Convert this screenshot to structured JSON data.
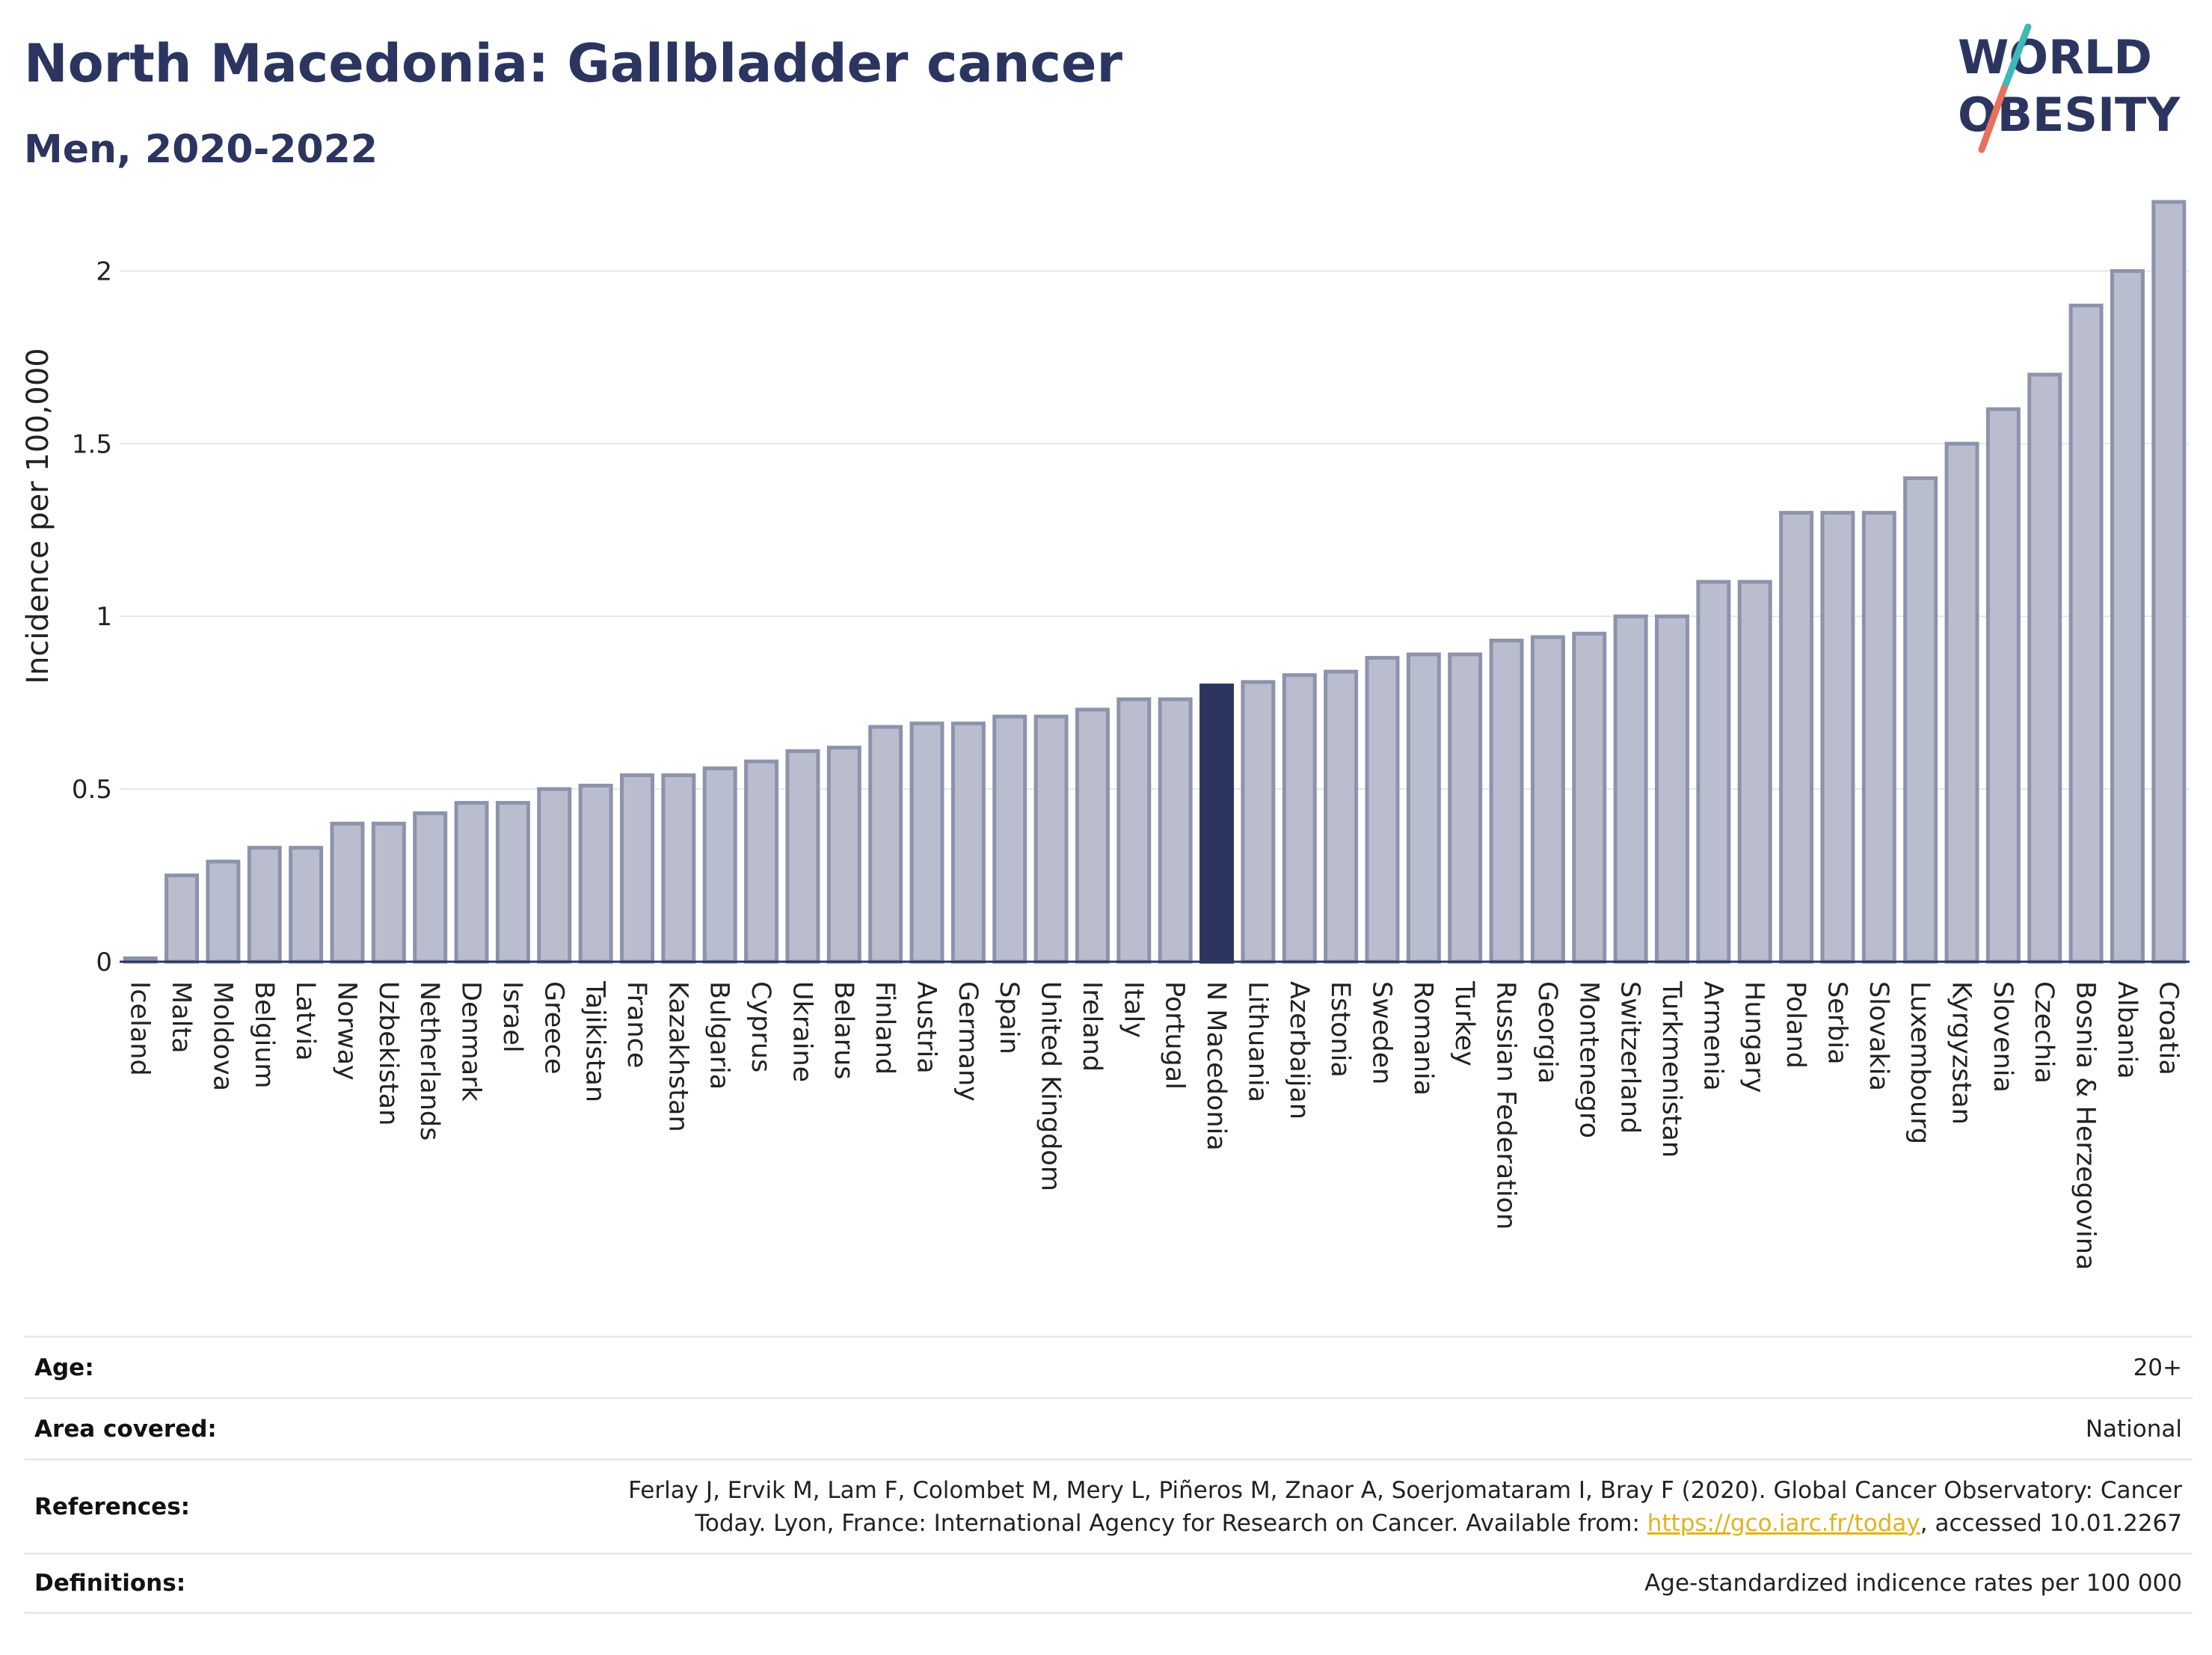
{
  "header": {
    "title": "North Macedonia: Gallbladder cancer",
    "subtitle": "Men, 2020-2022"
  },
  "logo": {
    "line1": "WORLD",
    "line2": "OBESITY",
    "colors": {
      "text": "#2b3560",
      "slash_top": "#3fb8b8",
      "slash_bottom": "#e8705c"
    }
  },
  "chart_data": {
    "type": "bar",
    "ylabel": "Incidence per 100,000",
    "ylim": [
      0,
      2.2
    ],
    "yticks": [
      0,
      0.5,
      1,
      1.5,
      2
    ],
    "ytick_labels": [
      "0",
      "0.5",
      "1",
      "1.5",
      "2"
    ],
    "grid": true,
    "highlight": "N Macedonia",
    "colors": {
      "bar": "#b9bdcd",
      "bar_border": "#8d93ad",
      "highlight": "#2b3560"
    },
    "categories": [
      "Iceland",
      "Malta",
      "Moldova",
      "Belgium",
      "Latvia",
      "Norway",
      "Uzbekistan",
      "Netherlands",
      "Denmark",
      "Israel",
      "Greece",
      "Tajikistan",
      "France",
      "Kazakhstan",
      "Bulgaria",
      "Cyprus",
      "Ukraine",
      "Belarus",
      "Finland",
      "Austria",
      "Germany",
      "Spain",
      "United Kingdom",
      "Ireland",
      "Italy",
      "Portugal",
      "N Macedonia",
      "Lithuania",
      "Azerbaijan",
      "Estonia",
      "Sweden",
      "Romania",
      "Turkey",
      "Russian Federation",
      "Georgia",
      "Montenegro",
      "Switzerland",
      "Turkmenistan",
      "Armenia",
      "Hungary",
      "Poland",
      "Serbia",
      "Slovakia",
      "Luxembourg",
      "Kyrgyzstan",
      "Slovenia",
      "Czechia",
      "Bosnia & Herzegovina",
      "Albania",
      "Croatia"
    ],
    "values": [
      0.01,
      0.25,
      0.29,
      0.33,
      0.33,
      0.4,
      0.4,
      0.43,
      0.46,
      0.46,
      0.5,
      0.51,
      0.54,
      0.54,
      0.56,
      0.58,
      0.61,
      0.62,
      0.68,
      0.69,
      0.69,
      0.71,
      0.71,
      0.73,
      0.76,
      0.76,
      0.8,
      0.81,
      0.83,
      0.84,
      0.88,
      0.89,
      0.89,
      0.93,
      0.94,
      0.95,
      1.0,
      1.0,
      1.1,
      1.1,
      1.3,
      1.3,
      1.3,
      1.4,
      1.5,
      1.6,
      1.7,
      1.9,
      2.0,
      2.2
    ]
  },
  "info": {
    "age": {
      "label": "Age:",
      "value": "20+"
    },
    "area": {
      "label": "Area covered:",
      "value": "National"
    },
    "references": {
      "label": "References:",
      "text_before": "Ferlay J, Ervik M, Lam F, Colombet M, Mery L, Piñeros M, Znaor A, Soerjomataram I, Bray F (2020). Global Cancer Observatory: Cancer Today. Lyon, France: International Agency for Research on Cancer. Available from: ",
      "link": "https://gco.iarc.fr/today",
      "text_after": ", accessed 10.01.2267"
    },
    "definitions": {
      "label": "Definitions:",
      "value": "Age-standardized indicence rates per 100 000"
    }
  }
}
